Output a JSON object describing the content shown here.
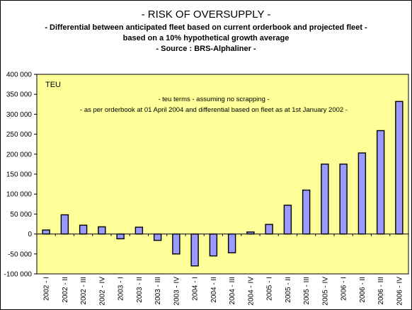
{
  "chart_data": {
    "type": "bar",
    "title": "- RISK OF OVERSUPPLY -",
    "subtitles": [
      "- Differential between anticipated fleet based on current orderbook and projected fleet -",
      "based on a 10% hypothetical growth average",
      "- Source : BRS-Alphaliner -"
    ],
    "unit_label": "TEU",
    "notes": [
      "- teu terms - assuming no scrapping -",
      "- as per orderbook at  01 April 2004 and differential based on fleet as at 1st January 2002 -"
    ],
    "categories": [
      "2002 - I",
      "2002 - II",
      "2002 - III",
      "2002 - IV",
      "2003 - I",
      "2003 - II",
      "2003 - III",
      "2003 - IV",
      "2004 - I",
      "2004 - II",
      "2004 - III",
      "2004 - IV",
      "2005 - I",
      "2005 - II",
      "2005 - III",
      "2005 - IV",
      "2006 - I",
      "2006 - II",
      "2006 - III",
      "2006 - IV"
    ],
    "values": [
      10000,
      48000,
      22000,
      18000,
      -12000,
      17000,
      -16000,
      -50000,
      -80000,
      -55000,
      -47000,
      5000,
      24000,
      72000,
      110000,
      175000,
      175000,
      203000,
      259000,
      332000
    ],
    "ylim": [
      -100000,
      400000
    ],
    "yticks": [
      "400 000",
      "350 000",
      "300 000",
      "250 000",
      "200 000",
      "150 000",
      "100 000",
      "50 000",
      "0",
      "-50 000",
      "-100 000"
    ],
    "grid": false,
    "colors": {
      "plot_background": "#ffff99",
      "bar_fill": "#9999ff",
      "bar_stroke": "#000000"
    }
  }
}
